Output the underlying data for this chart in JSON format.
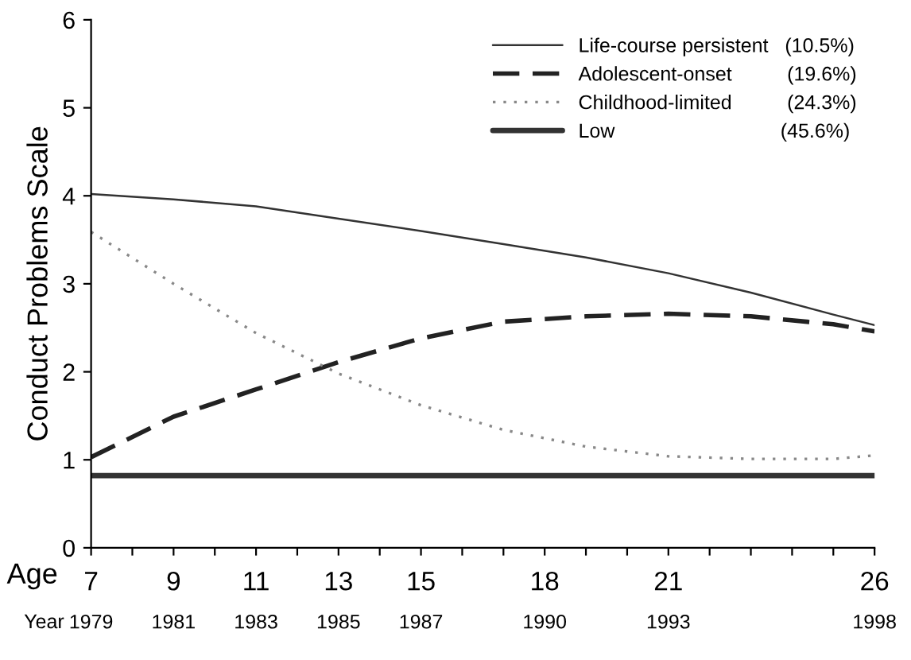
{
  "chart_data": {
    "type": "line",
    "ylabel": "Conduct Problems Scale",
    "xlabel": "Age",
    "x2label": "Year",
    "xlim": [
      7,
      26
    ],
    "xticks": [
      7,
      {
        "value": 8,
        "label": null
      },
      9,
      {
        "value": 10,
        "label": null
      },
      11,
      {
        "value": 12,
        "label": null
      },
      13,
      {
        "value": 14,
        "label": null
      },
      15,
      {
        "value": 16,
        "label": null
      },
      {
        "value": 17,
        "label": null
      },
      18,
      {
        "value": 19,
        "label": null
      },
      {
        "value": 20,
        "label": null
      },
      21,
      {
        "value": 22,
        "label": null
      },
      {
        "value": 23,
        "label": null
      },
      {
        "value": 24,
        "label": null
      },
      {
        "value": 25,
        "label": null
      },
      26
    ],
    "x2lim": [
      1979,
      1998
    ],
    "x2ticks": [
      1979,
      1981,
      1983,
      1985,
      1987,
      1990,
      1993,
      1998
    ],
    "ylim": [
      0,
      6
    ],
    "yticks": [
      0,
      1,
      2,
      3,
      4,
      5,
      6
    ],
    "grid": false,
    "legend": "top right",
    "marker": "none",
    "x": [
      7,
      9,
      11,
      13,
      15,
      17,
      19,
      21,
      23,
      25,
      26
    ],
    "series": [
      {
        "name": "Life-course persistent   (10.5%)",
        "color": "#333333",
        "line_style": "solid",
        "values": [
          4.02,
          3.96,
          3.88,
          3.74,
          3.6,
          3.45,
          3.3,
          3.12,
          2.9,
          2.65,
          2.53
        ]
      },
      {
        "name": "Adolescent-onset          (19.6%)",
        "color": "#222222",
        "line_style": "dashed",
        "values": [
          1.03,
          1.49,
          1.8,
          2.11,
          2.38,
          2.57,
          2.63,
          2.66,
          2.63,
          2.54,
          2.46
        ]
      },
      {
        "name": "Childhood-limited          (24.3%)",
        "color": "#888888",
        "line_style": "dotted",
        "values": [
          3.59,
          3.0,
          2.44,
          1.98,
          1.62,
          1.34,
          1.15,
          1.04,
          1.01,
          1.01,
          1.05
        ]
      },
      {
        "name": "Low                              (45.6%)",
        "color": "#333333",
        "line_style": "solid",
        "values": [
          0.82,
          0.82,
          0.82,
          0.82,
          0.82,
          0.82,
          0.82,
          0.82,
          0.82,
          0.82,
          0.82
        ]
      }
    ]
  }
}
